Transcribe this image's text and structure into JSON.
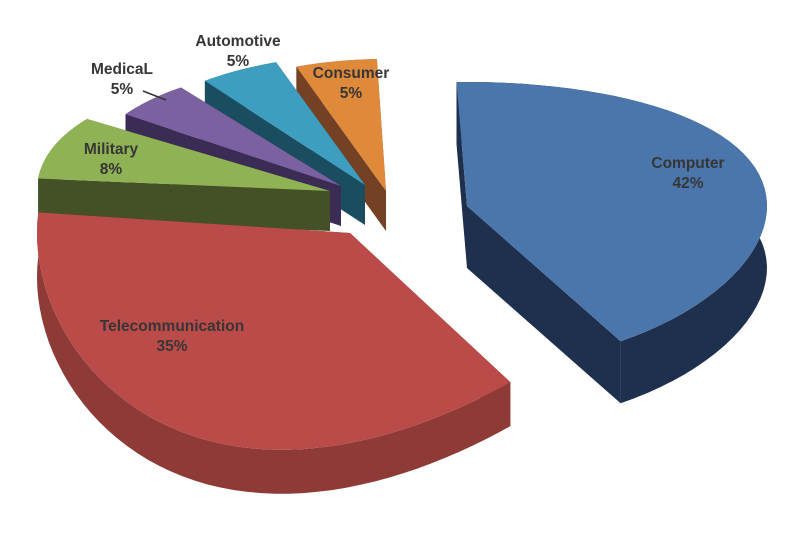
{
  "chart_data": {
    "type": "pie",
    "style": "3d-exploded-pie",
    "title": "",
    "legend": "none",
    "background": "#ffffff",
    "unit": "percent",
    "categories": [
      "Computer",
      "Telecommunication",
      "Military",
      "MedicaL",
      "Automotive",
      "Consumer"
    ],
    "values": [
      42,
      35,
      8,
      5,
      5,
      5
    ],
    "data_labels": [
      "Computer 42%",
      "Telecommunication 35%",
      "Military 8%",
      "MedicaL 5%",
      "Automotive 5%",
      "Consumer 5%"
    ],
    "start_angle_deg": -2,
    "clockwise": true
  },
  "slices": [
    {
      "key": "computer",
      "label": "Computer",
      "pct": "42%",
      "value": 42,
      "color_top": "#4B76AB",
      "color_side": "#1E304D"
    },
    {
      "key": "telecommunication",
      "label": "Telecommunication",
      "pct": "35%",
      "value": 35,
      "color_top": "#BB4B48",
      "color_side": "#8E3B38"
    },
    {
      "key": "military",
      "label": "Military",
      "pct": "8%",
      "value": 8,
      "color_top": "#8FB254",
      "color_side": "#445126"
    },
    {
      "key": "medical",
      "label": "MedicaL",
      "pct": "5%",
      "value": 5,
      "color_top": "#7C61A1",
      "color_side": "#3A2C54"
    },
    {
      "key": "automotive",
      "label": "Automotive",
      "pct": "5%",
      "value": 5,
      "color_top": "#3E9EBF",
      "color_side": "#1B4D60"
    },
    {
      "key": "consumer",
      "label": "Consumer",
      "pct": "5%",
      "value": 5,
      "color_top": "#DF8A3B",
      "color_side": "#744124"
    }
  ],
  "text_color": "#363636"
}
